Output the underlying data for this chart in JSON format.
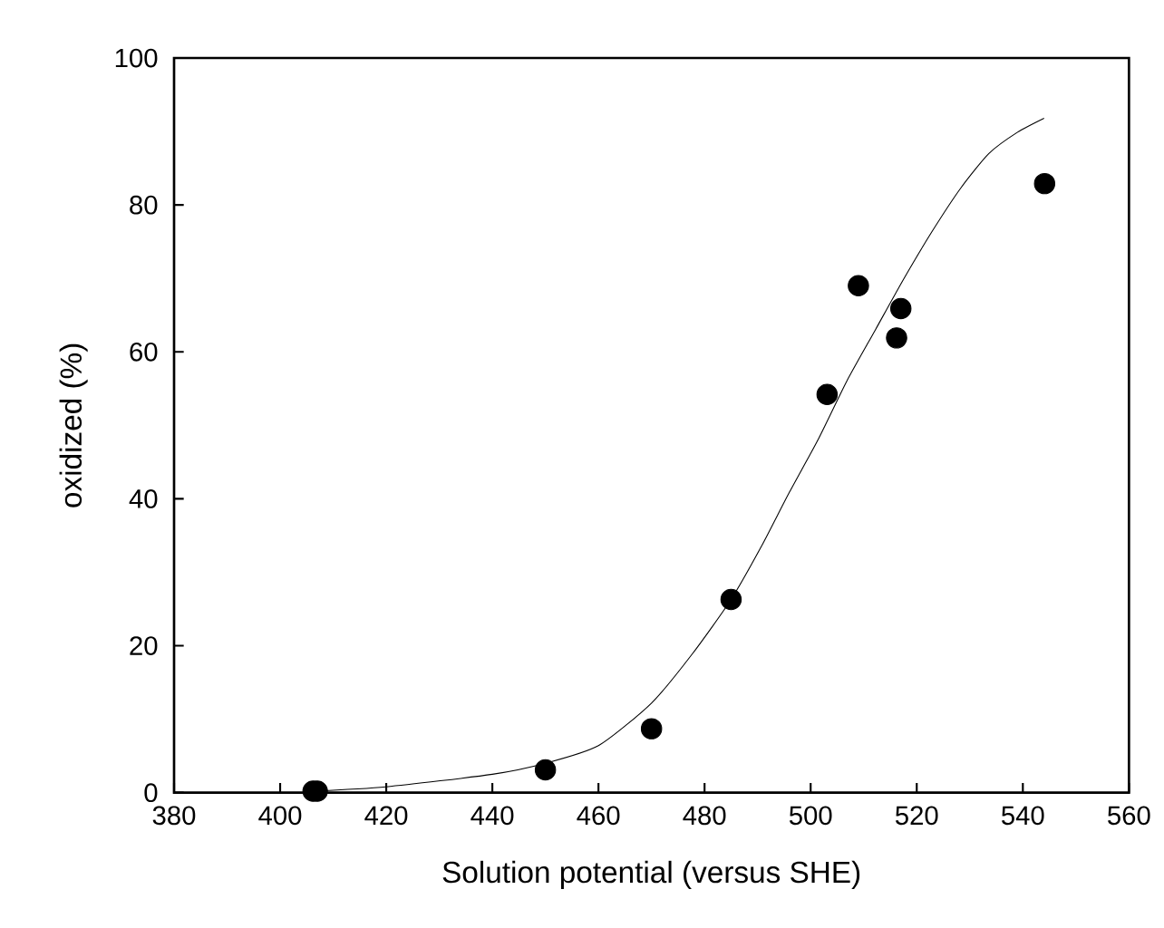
{
  "chart_data": {
    "type": "scatter",
    "xlabel": "Solution potential (versus SHE)",
    "ylabel": "oxidized (%)",
    "xlim": [
      380,
      560
    ],
    "ylim": [
      0,
      100
    ],
    "xticks": [
      380,
      400,
      420,
      440,
      460,
      480,
      500,
      520,
      540,
      560
    ],
    "yticks": [
      0,
      20,
      40,
      60,
      80,
      100
    ],
    "grid": false,
    "series": [
      {
        "color": "#000000",
        "marker": "circle",
        "x": [
          406.2,
          407,
          450,
          470,
          485,
          503.1,
          509,
          516.2,
          517,
          544.1
        ],
        "values": [
          0.2,
          0.2,
          3.1,
          8.7,
          26.3,
          54.2,
          69,
          61.9,
          65.9,
          82.9
        ]
      },
      {
        "type": "line",
        "color": "#000000",
        "marker": "none",
        "line_style": "solid",
        "x": [
          406,
          420,
          440,
          450,
          460,
          470,
          477.6,
          485,
          490.7,
          496,
          501.5,
          506.8,
          512.2,
          517.6,
          522.9,
          528.3,
          533.6,
          539,
          544
        ],
        "values": [
          0.2,
          0.8,
          2.5,
          4,
          6.4,
          12.2,
          18.8,
          26.3,
          33.5,
          40.9,
          48.2,
          56,
          63,
          70,
          76.4,
          82.3,
          87,
          89.9,
          91.8
        ]
      }
    ]
  }
}
